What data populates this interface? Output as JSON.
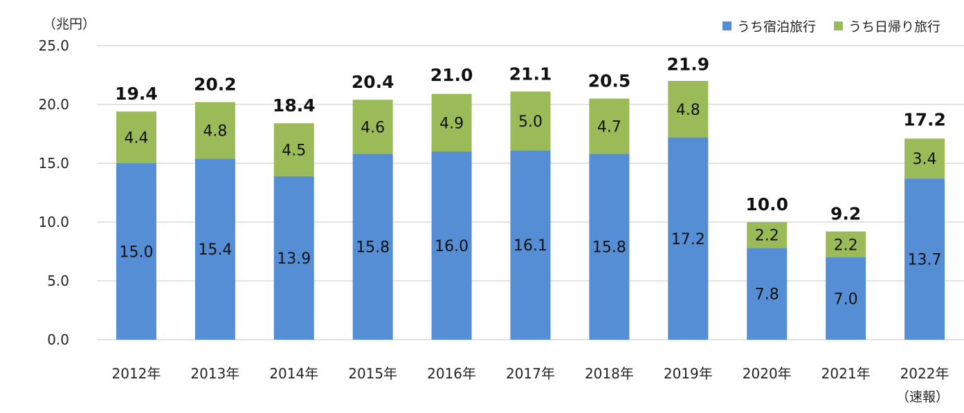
{
  "unit_label": "（兆円）",
  "note": "（速報）",
  "legend": [
    {
      "name": "うち宿泊旅行",
      "color": "#558ED5"
    },
    {
      "name": "うち日帰り旅行",
      "color": "#9BBB59"
    }
  ],
  "chart_data": {
    "type": "bar",
    "stacked": true,
    "categories": [
      "2012年",
      "2013年",
      "2014年",
      "2015年",
      "2016年",
      "2017年",
      "2018年",
      "2019年",
      "2020年",
      "2021年",
      "2022年"
    ],
    "series": [
      {
        "name": "うち宿泊旅行",
        "color": "#558ED5",
        "values": [
          15.0,
          15.4,
          13.9,
          15.8,
          16.0,
          16.1,
          15.8,
          17.2,
          7.8,
          7.0,
          13.7
        ],
        "labels": [
          "15.0",
          "15.4",
          "13.9",
          "15.8",
          "16.0",
          "16.1",
          "15.8",
          "17.2",
          "7.8",
          "7.0",
          "13.7"
        ]
      },
      {
        "name": "うち日帰り旅行",
        "color": "#9BBB59",
        "values": [
          4.4,
          4.8,
          4.5,
          4.6,
          4.9,
          5.0,
          4.7,
          4.8,
          2.2,
          2.2,
          3.4
        ],
        "labels": [
          "4.4",
          "4.8",
          "4.5",
          "4.6",
          "4.9",
          "5.0",
          "4.7",
          "4.8",
          "2.2",
          "2.2",
          "3.4"
        ]
      }
    ],
    "totals": [
      19.4,
      20.2,
      18.4,
      20.4,
      21.0,
      21.1,
      20.5,
      21.9,
      10.0,
      9.2,
      17.2
    ],
    "total_labels": [
      "19.4",
      "20.2",
      "18.4",
      "20.4",
      "21.0",
      "21.1",
      "20.5",
      "21.9",
      "10.0",
      "9.2",
      "17.2"
    ],
    "ylim": [
      0,
      25
    ],
    "yticks": [
      "0.0",
      "5.0",
      "10.0",
      "15.0",
      "20.0",
      "25.0"
    ],
    "ytick_values": [
      0,
      5,
      10,
      15,
      20,
      25
    ],
    "grid": true,
    "legend_position": "top-right"
  }
}
